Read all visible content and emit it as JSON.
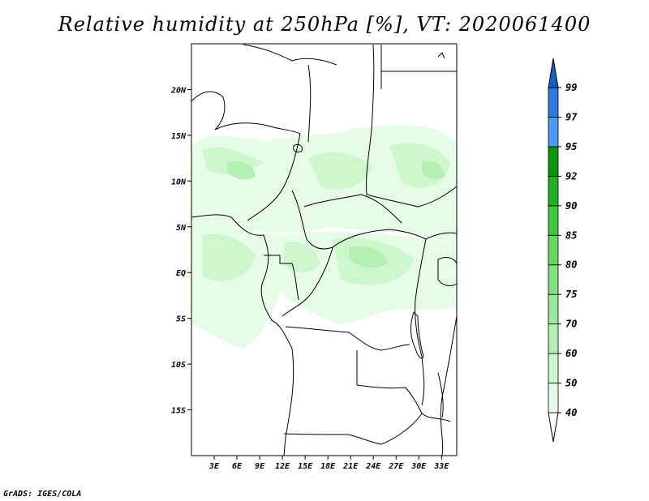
{
  "title": "Relative humidity at 250hPa [%], VT: 2020061400",
  "credit": "GrADS: IGES/COLA",
  "map": {
    "region": "Central Africa",
    "lon_range": [
      0,
      35
    ],
    "lat_range": [
      -20,
      25
    ],
    "lat_ticks": [
      {
        "value": 20,
        "label": "20N"
      },
      {
        "value": 15,
        "label": "15N"
      },
      {
        "value": 10,
        "label": "10N"
      },
      {
        "value": 5,
        "label": "5N"
      },
      {
        "value": 0,
        "label": "EQ"
      },
      {
        "value": -5,
        "label": "5S"
      },
      {
        "value": -10,
        "label": "10S"
      },
      {
        "value": -15,
        "label": "15S"
      }
    ],
    "lon_ticks": [
      {
        "value": 3,
        "label": "3E"
      },
      {
        "value": 6,
        "label": "6E"
      },
      {
        "value": 9,
        "label": "9E"
      },
      {
        "value": 12,
        "label": "12E"
      },
      {
        "value": 15,
        "label": "15E"
      },
      {
        "value": 18,
        "label": "18E"
      },
      {
        "value": 21,
        "label": "21E"
      },
      {
        "value": 24,
        "label": "24E"
      },
      {
        "value": 27,
        "label": "27E"
      },
      {
        "value": 30,
        "label": "30E"
      },
      {
        "value": 33,
        "label": "33E"
      }
    ]
  },
  "colorbar": {
    "levels": [
      {
        "label": "40",
        "color": "#ffffff"
      },
      {
        "label": "50",
        "color": "#e6fce6"
      },
      {
        "label": "60",
        "color": "#ccf7cc"
      },
      {
        "label": "70",
        "color": "#b4f0b4"
      },
      {
        "label": "75",
        "color": "#9ae99a"
      },
      {
        "label": "80",
        "color": "#80e080"
      },
      {
        "label": "85",
        "color": "#64d664"
      },
      {
        "label": "90",
        "color": "#3ec83e"
      },
      {
        "label": "92",
        "color": "#23b023"
      },
      {
        "label": "95",
        "color": "#0a960a"
      },
      {
        "label": "97",
        "color": "#4b9bf0"
      },
      {
        "label": "99",
        "color": "#2a78e0"
      }
    ],
    "top_color": "#1a5fc8"
  },
  "fill_colors": {
    "light": "#e6fce6",
    "mid": "#ccf7cc",
    "strong": "#b4f0b4"
  }
}
